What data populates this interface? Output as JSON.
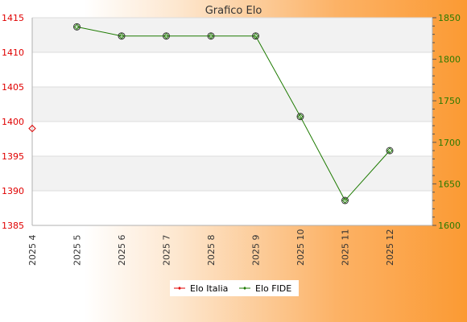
{
  "chart_data": {
    "type": "line",
    "title": "Grafico Elo",
    "categories": [
      "2025 4",
      "2025 5",
      "2025 6",
      "2025 7",
      "2025 8",
      "2025 9",
      "2025 10",
      "2025 11",
      "2025 12"
    ],
    "series": [
      {
        "name": "Elo Italia",
        "axis": "left",
        "color": "#e00000",
        "values": [
          1399,
          null,
          null,
          null,
          null,
          null,
          null,
          null,
          null
        ]
      },
      {
        "name": "Elo FIDE",
        "axis": "right",
        "color": "#1d7a00",
        "values": [
          null,
          1839,
          1828,
          1828,
          1828,
          1828,
          1731,
          1630,
          1690
        ]
      }
    ],
    "y_left": {
      "range": [
        1385,
        1415
      ],
      "ticks": [
        1385,
        1390,
        1395,
        1400,
        1405,
        1410,
        1415
      ]
    },
    "y_right": {
      "range": [
        1600,
        1850
      ],
      "ticks": [
        1600,
        1650,
        1700,
        1750,
        1800,
        1850
      ]
    },
    "grid": true,
    "legend_position": "bottom",
    "colors": {
      "band": "#f2f2f2",
      "grid": "#dcdcdc",
      "left_axis": "#e00000",
      "right_axis": "#2a7a00"
    }
  }
}
